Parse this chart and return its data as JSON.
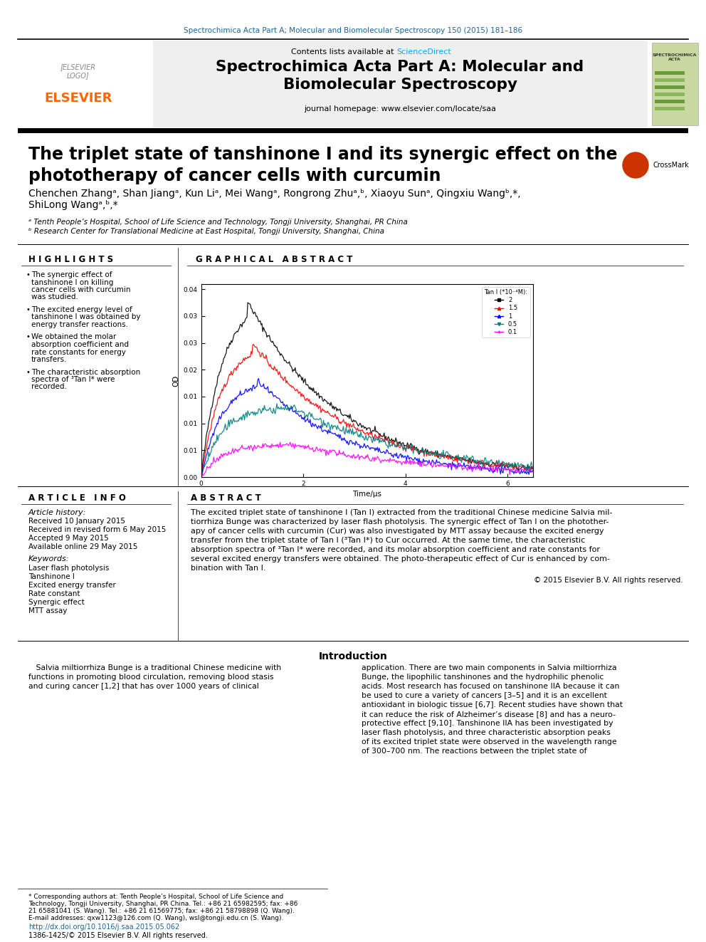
{
  "journal_header": "Spectrochimica Acta Part A; Molecular and Biomolecular Spectroscopy 150 (2015) 181–186",
  "journal_title_line1": "Spectrochimica Acta Part A: Molecular and",
  "journal_title_line2": "Biomolecular Spectroscopy",
  "contents_text": "Contents lists available at ",
  "sciencedirect_text": "ScienceDirect",
  "homepage_text": "journal homepage: www.elsevier.com/locate/saa",
  "paper_title": "The triplet state of tanshinone I and its synergic effect on the\nphototherapy of cancer cells with curcumin",
  "affil_a": "ᵃ Tenth People’s Hospital, School of Life Science and Technology, Tongji University, Shanghai, PR China",
  "affil_b": "ᵇ Research Center for Translational Medicine at East Hospital, Tongji University, Shanghai, China",
  "highlights_title": "H I G H L I G H T S",
  "highlights": [
    "The synergic effect of tanshinone I on killing cancer cells with curcumin was studied.",
    "The excited energy level of tanshinone I was obtained by energy transfer reactions.",
    "We obtained the molar absorption coefficient and rate constants for energy transfers.",
    "The characteristic absorption spectra of ³Tan I* were recorded."
  ],
  "graphical_abstract_title": "G R A P H I C A L   A B S T R A C T",
  "article_info_title": "A R T I C L E   I N F O",
  "article_history_title": "Article history:",
  "article_history": [
    "Received 10 January 2015",
    "Received in revised form 6 May 2015",
    "Accepted 9 May 2015",
    "Available online 29 May 2015"
  ],
  "keywords_title": "Keywords:",
  "keywords": [
    "Laser flash photolysis",
    "Tanshinone I",
    "Excited energy transfer",
    "Rate constant",
    "Synergic effect",
    "MTT assay"
  ],
  "abstract_title": "A B S T R A C T",
  "abstract_text": "The excited triplet state of tanshinone I (Tan I) extracted from the traditional Chinese medicine Salvia mil-\ntiorrhiza Bunge was characterized by laser flash photolysis. The synergic effect of Tan I on the photother-\napy of cancer cells with curcumin (Cur) was also investigated by MTT assay because the excited energy\ntransfer from the triplet state of Tan I (³Tan I*) to Cur occurred. At the same time, the characteristic\nabsorption spectra of ³Tan I* were recorded, and its molar absorption coefficient and rate constants for\nseveral excited energy transfers were obtained. The photo-therapeutic effect of Cur is enhanced by com-\nbination with Tan I.",
  "copyright_text": "© 2015 Elsevier B.V. All rights reserved.",
  "intro_title": "Introduction",
  "intro_col1": "   Salvia miltiorrhiza Bunge is a traditional Chinese medicine with\nfunctions in promoting blood circulation, removing blood stasis\nand curing cancer [1,2] that has over 1000 years of clinical",
  "intro_col2": "application. There are two main components in Salvia miltiorrhiza\nBunge, the lipophilic tanshinones and the hydrophilic phenolic\nacids. Most research has focused on tanshinone IIA because it can\nbe used to cure a variety of cancers [3–5] and it is an excellent\nantioxidant in biologic tissue [6,7]. Recent studies have shown that\nit can reduce the risk of Alzheimer’s disease [8] and has a neuro-\nprotective effect [9,10]. Tanshinone IIA has been investigated by\nlaser flash photolysis, and three characteristic absorption peaks\nof its excited triplet state were observed in the wavelength range\nof 300–700 nm. The reactions between the triplet state of",
  "footer_note_lines": [
    "* Corresponding authors at: Tenth People’s Hospital, School of Life Science and",
    "Technology, Tongji University, Shanghai, PR China. Tel.: +86 21 65982595; fax: +86",
    "21 65881041 (S. Wang). Tel.: +86 21 61569775; fax: +86 21 58798898 (Q. Wang).",
    "E-mail addresses: qxw1123@126.com (Q. Wang), wsl@tongji.edu.cn (S. Wang)."
  ],
  "doi_text": "http://dx.doi.org/10.1016/j.saa.2015.05.062",
  "issn_text": "1386-1425/© 2015 Elsevier B.V. All rights reserved.",
  "graph_legend_title": "Tan I (*10⁻⁴M):",
  "graph_legend_items": [
    "2",
    "1.5",
    "1",
    "0.5",
    "0.1"
  ],
  "graph_legend_colors": [
    "#000000",
    "#FF0000",
    "#0000FF",
    "#008080",
    "#FF00FF"
  ],
  "graph_legend_markers": [
    "s",
    "^",
    "^",
    "v",
    "+"
  ],
  "graph_xlabel": "Time/μs",
  "graph_ylabel": "OD",
  "header_color": "#1a6496",
  "elsevier_color": "#FF6600",
  "background_gray": "#efefef",
  "highlight_cyan": "#00AEEF",
  "doi_color": "#1a6496",
  "graph_peak_vals": [
    0.033,
    0.025,
    0.018,
    0.013,
    0.006
  ],
  "graph_decay_rates": [
    0.55,
    0.5,
    0.55,
    0.4,
    0.35
  ],
  "graph_noise_amps": [
    0.0003,
    0.0003,
    0.0003,
    0.0004,
    0.0003
  ],
  "graph_peak_ts": [
    0.9,
    1.0,
    1.1,
    1.8,
    1.8
  ]
}
